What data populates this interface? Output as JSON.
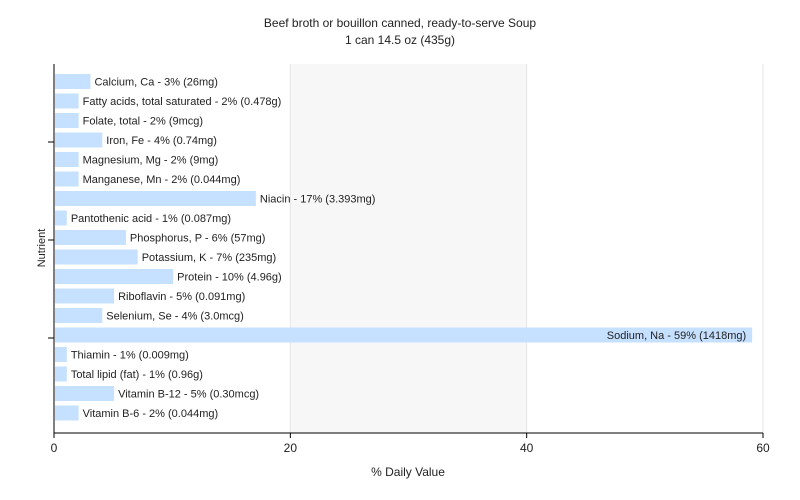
{
  "chart_data": {
    "type": "bar",
    "orientation": "horizontal",
    "title": "Beef broth or bouillon canned, ready-to-serve Soup",
    "subtitle": "1 can 14.5 oz (435g)",
    "xlabel": "% Daily Value",
    "ylabel": "Nutrient",
    "xlim": [
      0,
      60
    ],
    "xticks": [
      "0",
      "20",
      "40",
      "60"
    ],
    "grid": true,
    "bar_color": "#c6e0ff",
    "categories": [
      "Calcium, Ca",
      "Fatty acids, total saturated",
      "Folate, total",
      "Iron, Fe",
      "Magnesium, Mg",
      "Manganese, Mn",
      "Niacin",
      "Pantothenic acid",
      "Phosphorus, P",
      "Potassium, K",
      "Protein",
      "Riboflavin",
      "Selenium, Se",
      "Sodium, Na",
      "Thiamin",
      "Total lipid (fat)",
      "Vitamin B-12",
      "Vitamin B-6"
    ],
    "values": [
      3,
      2,
      2,
      4,
      2,
      2,
      17,
      1,
      6,
      7,
      10,
      5,
      4,
      59,
      1,
      1,
      5,
      2
    ],
    "labels": [
      "Calcium, Ca - 3% (26mg)",
      "Fatty acids, total saturated - 2% (0.478g)",
      "Folate, total - 2% (9mcg)",
      "Iron, Fe - 4% (0.74mg)",
      "Magnesium, Mg - 2% (9mg)",
      "Manganese, Mn - 2% (0.044mg)",
      "Niacin - 17% (3.393mg)",
      "Pantothenic acid - 1% (0.087mg)",
      "Phosphorus, P - 6% (57mg)",
      "Potassium, K - 7% (235mg)",
      "Protein - 10% (4.96g)",
      "Riboflavin - 5% (0.091mg)",
      "Selenium, Se - 4% (3.0mcg)",
      "Sodium, Na - 59% (1418mg)",
      "Thiamin - 1% (0.009mg)",
      "Total lipid (fat) - 1% (0.96g)",
      "Vitamin B-12 - 5% (0.30mcg)",
      "Vitamin B-6 - 2% (0.044mg)"
    ]
  }
}
